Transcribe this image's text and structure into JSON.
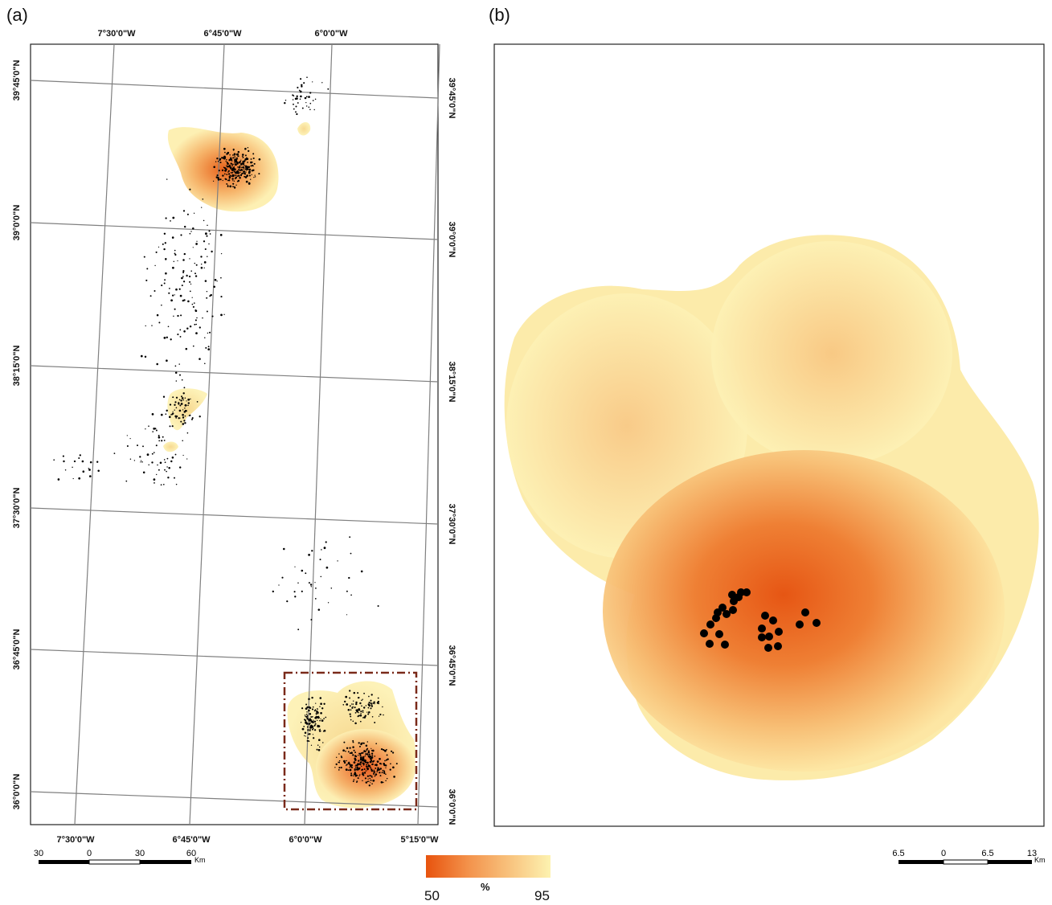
{
  "panels": {
    "a": {
      "label": "(a)",
      "lon_top": [
        "7°30'0\"W",
        "6°45'0\"W",
        "6°0'0\"W"
      ],
      "lon_bottom": [
        "7°30'0\"W",
        "6°45'0\"W",
        "6°0'0\"W",
        "5°15'0\"W"
      ],
      "lat_left": [
        "39°45'0\"N",
        "39°0'0\"N",
        "38°15'0\"N",
        "37°30'0\"N",
        "36°45'0\"N",
        "36°0'0\"N"
      ],
      "lat_right": [
        "39°45'0\"N",
        "39°0'0\"N",
        "38°15'0\"N",
        "37°30'0\"N",
        "36°45'0\"N",
        "36°0'0\"N"
      ],
      "scalebar": {
        "labels": [
          "30",
          "0",
          "30",
          "60"
        ],
        "unit": "Km"
      }
    },
    "b": {
      "label": "(b)",
      "scalebar": {
        "labels": [
          "6.5",
          "0",
          "6.5",
          "13"
        ],
        "unit": "Km"
      }
    }
  },
  "legend": {
    "title": "%",
    "min_label": "50",
    "max_label": "95",
    "color_low": "#e8530e",
    "color_high": "#fdf2b0"
  },
  "colors": {
    "grid": "#808080",
    "inset_box": "#7a2a1a",
    "points": "#000000"
  }
}
